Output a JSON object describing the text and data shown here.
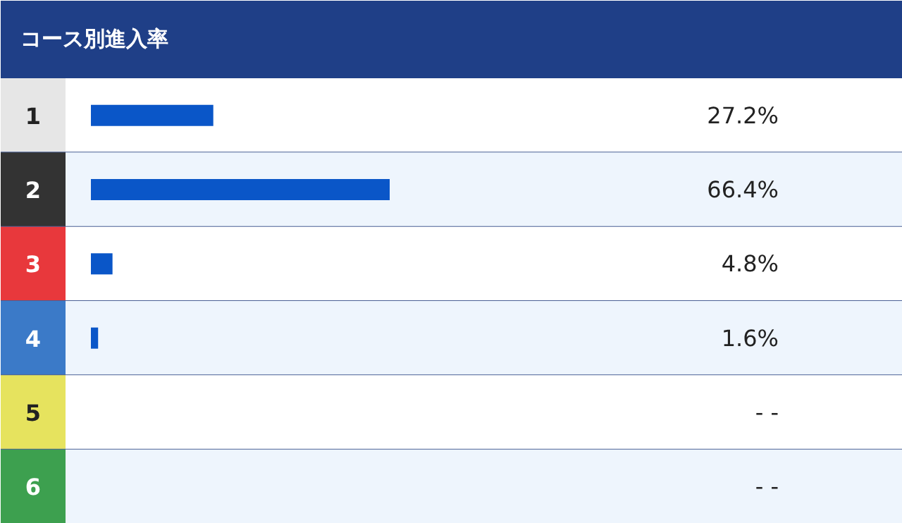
{
  "chart_data": {
    "type": "bar",
    "orientation": "horizontal",
    "title": "コース別進入率",
    "categories": [
      "1",
      "2",
      "3",
      "4",
      "5",
      "6"
    ],
    "values": [
      27.2,
      66.4,
      4.8,
      1.6,
      null,
      null
    ],
    "value_labels": [
      "27.2%",
      "66.4%",
      "4.8%",
      "1.6%",
      "- -",
      "- -"
    ],
    "color": "#0a56c8"
  }
}
